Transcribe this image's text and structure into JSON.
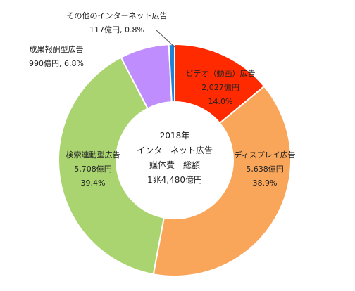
{
  "chart_data": {
    "type": "pie",
    "title": "",
    "center": {
      "line1": "2018年",
      "line2": "インターネット広告",
      "line3": "媒体費　総額",
      "line4": "1兆4,480億円"
    },
    "slices": [
      {
        "label": "ビデオ（動画）広告",
        "value_text": "2,027億円",
        "percent_text": "14.0%",
        "value": 2027,
        "percent": 14.0,
        "color": "#ff2a00"
      },
      {
        "label": "ディスプレイ広告",
        "value_text": "5,638億円",
        "percent_text": "38.9%",
        "value": 5638,
        "percent": 38.9,
        "color": "#f9a65a"
      },
      {
        "label": "検索連動型広告",
        "value_text": "5,708億円",
        "percent_text": "39.4%",
        "value": 5708,
        "percent": 39.4,
        "color": "#a9d46f"
      },
      {
        "label": "成果報酬型広告",
        "value_text": "990億円",
        "percent_text": "6.8%",
        "value": 990,
        "percent": 6.8,
        "color": "#c08dff"
      },
      {
        "label": "その他のインターネット広告",
        "value_text": "117億円",
        "percent_text": "0.8%",
        "value": 117,
        "percent": 0.8,
        "color": "#1f83d6"
      }
    ]
  }
}
